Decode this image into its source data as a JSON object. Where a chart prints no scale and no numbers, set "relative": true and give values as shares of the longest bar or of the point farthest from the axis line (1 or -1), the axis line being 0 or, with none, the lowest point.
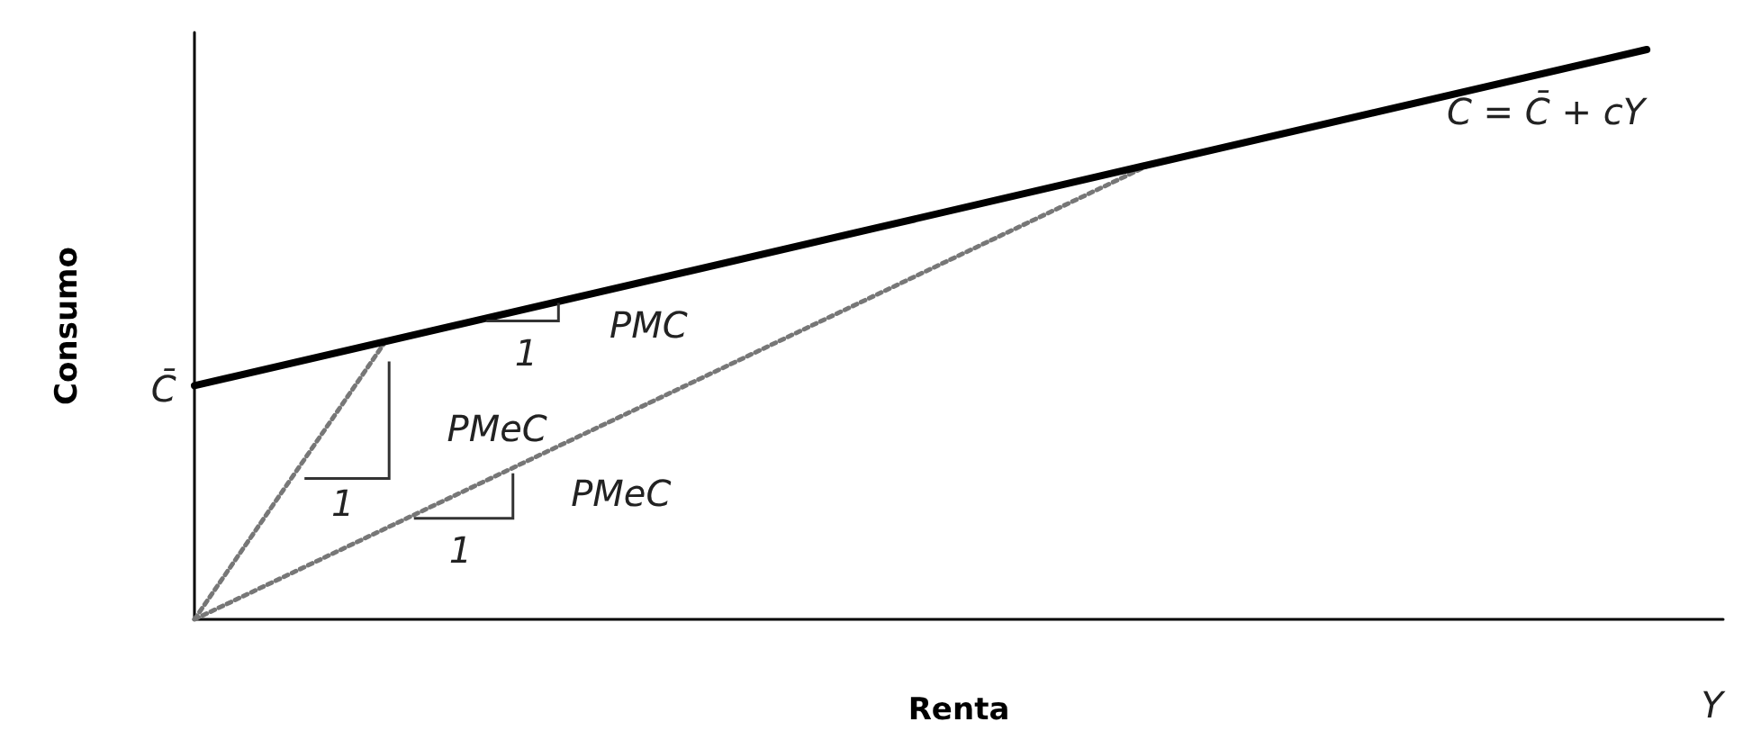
{
  "chart_data": {
    "type": "line",
    "relative": true,
    "xlabel": "Renta",
    "ylabel": "Consumo",
    "grid": false,
    "marker": "none",
    "categories": [
      null,
      null,
      null,
      null,
      null,
      null,
      null,
      null,
      null,
      null,
      null,
      null,
      null,
      null,
      null,
      null,
      null,
      null,
      null,
      null,
      null,
      null,
      null,
      null,
      null,
      null,
      null,
      null,
      null,
      null,
      null,
      null,
      null,
      null,
      null,
      null,
      null,
      null,
      null,
      null,
      null
    ],
    "series": [
      {
        "color": "#000000",
        "line_style": "solid",
        "values": [
          0.41,
          null,
          null,
          null,
          null,
          null,
          null,
          null,
          null,
          null,
          null,
          null,
          null,
          null,
          null,
          null,
          null,
          null,
          null,
          null,
          null,
          null,
          null,
          null,
          null,
          null,
          null,
          null,
          null,
          null,
          null,
          null,
          null,
          null,
          null,
          null,
          null,
          null,
          1,
          null,
          null
        ]
      },
      {
        "color": "#777777",
        "line_style": "dotted",
        "values": [
          0,
          null,
          null,
          null,
          null,
          0.488,
          null,
          null,
          null,
          null,
          null,
          null,
          null,
          null,
          null,
          null,
          null,
          null,
          null,
          null,
          null,
          null,
          null,
          null,
          null,
          null,
          null,
          null,
          null,
          null,
          null,
          null,
          null,
          null,
          null,
          null,
          null,
          null,
          null,
          null,
          null
        ]
      },
      {
        "color": "#777777",
        "line_style": "dotted",
        "values": [
          0,
          null,
          null,
          null,
          null,
          null,
          null,
          null,
          null,
          null,
          null,
          null,
          null,
          null,
          null,
          null,
          null,
          null,
          null,
          null,
          null,
          null,
          null,
          null,
          null,
          0.798,
          null,
          null,
          null,
          null,
          null,
          null,
          null,
          null,
          null,
          null,
          null,
          null,
          null,
          null,
          null
        ]
      }
    ],
    "annotations": [
      "C = C̄ + cY",
      "PMC",
      "1",
      "PMeC",
      "1",
      "PMeC",
      "1",
      "C̄",
      "Y"
    ]
  }
}
